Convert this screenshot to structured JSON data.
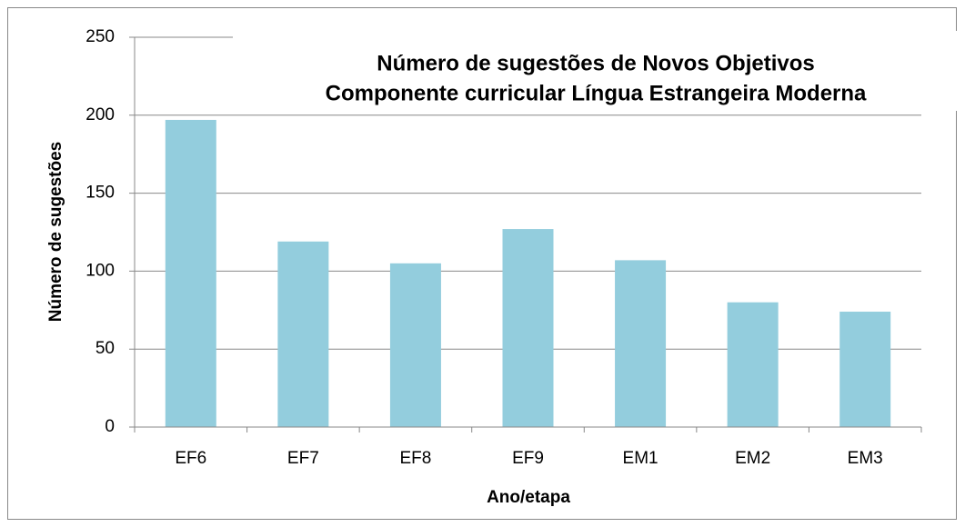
{
  "chart_data": {
    "type": "bar",
    "title": [
      "Número de sugestões de Novos Objetivos",
      "Componente curricular Língua Estrangeira Moderna"
    ],
    "x_label": "Ano/etapa",
    "y_label": "Número de sugestões",
    "categories": [
      "EF6",
      "EF7",
      "EF8",
      "EF9",
      "EM1",
      "EM2",
      "EM3"
    ],
    "values": [
      197,
      119,
      105,
      127,
      107,
      80,
      74
    ],
    "color": "#93cddd",
    "ylim": [
      0,
      250
    ],
    "yticks": [
      0,
      50,
      100,
      150,
      200,
      250
    ],
    "grid": true
  }
}
